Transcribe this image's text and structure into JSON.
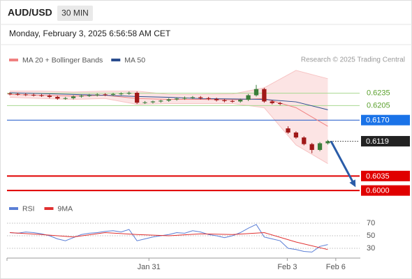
{
  "chart_data": {
    "type": "candlestick",
    "title": "AUD/USD",
    "interval": "30 MIN",
    "subtitle": "Monday, February 3, 2025 6:56:58 AM CET",
    "source": "Research © 2025 Trading Central",
    "xlim": [
      0,
      44
    ],
    "ylim": [
      0.598,
      0.63
    ],
    "xticks": [
      {
        "value": 17.5,
        "label": "Jan 31"
      },
      {
        "value": 34.9,
        "label": "Feb 3"
      },
      {
        "value": 41,
        "label": "Feb 6"
      }
    ],
    "up_color": "#3a7d3a",
    "down_color": "#a01818",
    "candles": {
      "open": [
        0.6234,
        0.6233,
        0.6232,
        0.6231,
        0.623,
        0.6229,
        0.6226,
        0.6222,
        0.6223,
        0.6227,
        0.6229,
        0.623,
        0.6232,
        0.6231,
        0.6233,
        0.6234,
        0.6236,
        0.6212,
        0.6213,
        0.6215,
        0.6217,
        0.622,
        0.6222,
        0.6224,
        0.6225,
        0.6223,
        0.6221,
        0.6218,
        0.6216,
        0.6215,
        0.6219,
        0.623,
        0.6245,
        0.6215,
        0.6211,
        0.615,
        0.614,
        0.6128,
        0.6112,
        0.6098,
        0.6114
      ],
      "high": [
        0.6237,
        0.6236,
        0.6235,
        0.6234,
        0.6233,
        0.6232,
        0.6229,
        0.6226,
        0.623,
        0.6232,
        0.6233,
        0.6235,
        0.6235,
        0.6236,
        0.6237,
        0.6239,
        0.6239,
        0.6216,
        0.6217,
        0.6219,
        0.6223,
        0.6225,
        0.6227,
        0.6228,
        0.6228,
        0.6226,
        0.6224,
        0.6221,
        0.6219,
        0.6222,
        0.6233,
        0.6255,
        0.6248,
        0.6218,
        0.6214,
        0.6155,
        0.6143,
        0.6131,
        0.6115,
        0.6117,
        0.6122
      ],
      "low": [
        0.623,
        0.6229,
        0.6228,
        0.6227,
        0.6226,
        0.6223,
        0.6219,
        0.6219,
        0.622,
        0.6224,
        0.6226,
        0.6227,
        0.6228,
        0.6228,
        0.623,
        0.6231,
        0.6209,
        0.6209,
        0.621,
        0.6212,
        0.6214,
        0.6217,
        0.6219,
        0.6221,
        0.622,
        0.6218,
        0.6215,
        0.6213,
        0.6212,
        0.6212,
        0.6216,
        0.6227,
        0.6212,
        0.6208,
        0.6206,
        0.6137,
        0.6125,
        0.6109,
        0.609,
        0.6095,
        0.6111
      ],
      "close": [
        0.6233,
        0.6232,
        0.6231,
        0.623,
        0.6229,
        0.6226,
        0.6222,
        0.6223,
        0.6227,
        0.6229,
        0.623,
        0.6232,
        0.6231,
        0.6233,
        0.6234,
        0.6236,
        0.6212,
        0.6213,
        0.6215,
        0.6217,
        0.622,
        0.6222,
        0.6224,
        0.6225,
        0.6223,
        0.6221,
        0.6218,
        0.6216,
        0.6215,
        0.6219,
        0.623,
        0.6245,
        0.6215,
        0.6211,
        0.6209,
        0.614,
        0.6128,
        0.6112,
        0.6098,
        0.6114,
        0.6119
      ]
    },
    "indicator_x": [
      0,
      4,
      8,
      12,
      16,
      20,
      24,
      28,
      32,
      36,
      40
    ],
    "indicators": [
      {
        "name": "MA 20 + Bollinger Bands",
        "color": "#f08080",
        "values": [
          0.6232,
          0.623,
          0.6228,
          0.623,
          0.6222,
          0.622,
          0.622,
          0.6219,
          0.6222,
          0.62,
          0.6155
        ],
        "upper": [
          0.624,
          0.624,
          0.6238,
          0.624,
          0.624,
          0.6232,
          0.6232,
          0.6233,
          0.6248,
          0.629,
          0.627
        ],
        "lower": [
          0.6225,
          0.6222,
          0.622,
          0.6222,
          0.6208,
          0.621,
          0.621,
          0.621,
          0.62,
          0.611,
          0.6065
        ]
      },
      {
        "name": "MA 50",
        "color": "#2a4d8f",
        "values": [
          0.6236,
          0.6234,
          0.6232,
          0.623,
          0.6227,
          0.6225,
          0.6222,
          0.6221,
          0.622,
          0.6214,
          0.6195
        ]
      }
    ],
    "levels": [
      {
        "value": 0.6235,
        "label": "0.6235",
        "color": "#a8d890",
        "style": "text"
      },
      {
        "value": 0.6205,
        "label": "0.6205",
        "color": "#a8d890",
        "style": "text"
      },
      {
        "value": 0.617,
        "label": "0.6170",
        "color": "#1a56c8",
        "style": "box"
      },
      {
        "value": 0.6119,
        "label": "0.6119",
        "color": "#222222",
        "style": "last"
      },
      {
        "value": 0.6035,
        "label": "0.6035",
        "color": "#e00000",
        "style": "box"
      },
      {
        "value": 0.6,
        "label": "0.6000",
        "color": "#e00000",
        "style": "box"
      }
    ],
    "forecast": {
      "x": [
        40.4,
        43.5
      ],
      "values": [
        0.6119,
        0.6008
      ],
      "color": "#2a5ca8"
    },
    "rsi": {
      "ylim": [
        10,
        80
      ],
      "yticks": [
        30,
        50,
        70
      ],
      "series": [
        {
          "name": "RSI",
          "color": "#5b7fd6",
          "x_source": "candles",
          "values": [
            55,
            54,
            56,
            55,
            53,
            50,
            45,
            42,
            47,
            52,
            54,
            55,
            57,
            58,
            56,
            60,
            42,
            45,
            48,
            50,
            52,
            55,
            54,
            58,
            56,
            52,
            50,
            47,
            50,
            55,
            62,
            68,
            48,
            45,
            42,
            30,
            28,
            25,
            24,
            33,
            36
          ]
        },
        {
          "name": "9MA",
          "color": "#e03030",
          "x_source": "indicator_x",
          "values": [
            55,
            52,
            48,
            55,
            52,
            50,
            53,
            52,
            55,
            40,
            28
          ]
        }
      ]
    }
  }
}
